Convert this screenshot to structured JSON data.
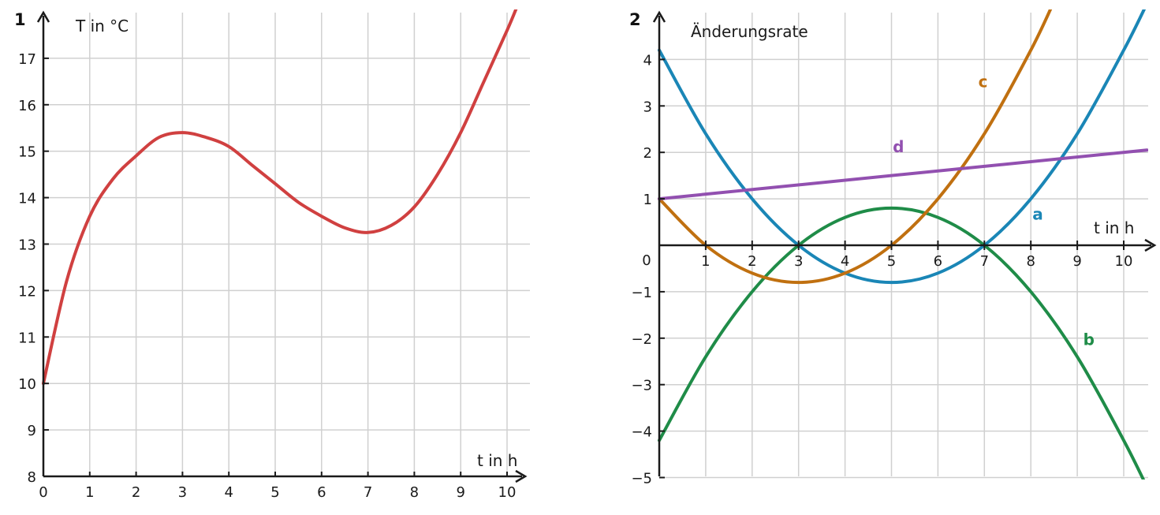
{
  "chart_data": [
    {
      "number": "1",
      "type": "line",
      "ylabel": "T in °C",
      "xlabel": "t in h",
      "xlim": [
        0,
        10.5
      ],
      "ylim": [
        8,
        17.8
      ],
      "x_ticks": [
        0,
        1,
        2,
        3,
        4,
        5,
        6,
        7,
        8,
        9,
        10
      ],
      "y_ticks": [
        8,
        9,
        10,
        11,
        12,
        13,
        14,
        15,
        16,
        17
      ],
      "grid": true,
      "series": [
        {
          "color": "#d04040",
          "x": [
            0,
            0.5,
            1,
            1.5,
            2,
            2.5,
            3,
            3.5,
            4,
            4.5,
            5,
            5.5,
            6,
            6.5,
            7,
            7.5,
            8,
            8.5,
            9,
            9.5,
            10,
            10.25
          ],
          "y": [
            10.0,
            12.2,
            13.6,
            14.4,
            14.9,
            15.3,
            15.4,
            15.3,
            15.1,
            14.7,
            14.3,
            13.9,
            13.6,
            13.35,
            13.25,
            13.4,
            13.8,
            14.5,
            15.4,
            16.5,
            17.6,
            18.2
          ]
        }
      ]
    },
    {
      "number": "2",
      "type": "line",
      "ylabel": "Änderungsrate",
      "xlabel": "t in h",
      "origin_label": "0",
      "xlim": [
        0,
        10.5
      ],
      "ylim": [
        -5,
        4.3
      ],
      "x_ticks": [
        1,
        2,
        3,
        4,
        5,
        6,
        7,
        8,
        9,
        10
      ],
      "y_ticks": [
        4,
        3,
        2,
        1,
        -1,
        -2,
        -3,
        -4,
        -5
      ],
      "y_tick_labels": [
        "4",
        "3",
        "2",
        "1",
        "−1",
        "−2",
        "−3",
        "−4",
        "−5"
      ],
      "grid": true,
      "series": [
        {
          "name": "a",
          "color": "#1a86b6",
          "x": [
            0,
            1,
            2,
            3,
            4,
            5,
            6,
            7,
            8,
            9,
            10,
            10.5
          ],
          "y": [
            4.2,
            2.4,
            1.0,
            0,
            -0.6,
            -0.8,
            -0.6,
            0,
            1.0,
            2.4,
            4.2,
            5.2
          ]
        },
        {
          "name": "b",
          "color": "#1f8c48",
          "x": [
            0,
            1,
            2,
            3,
            4,
            5,
            6,
            7,
            8,
            9,
            10,
            10.5
          ],
          "y": [
            -4.2,
            -2.4,
            -1.0,
            0,
            0.6,
            0.8,
            0.6,
            0,
            -1.0,
            -2.4,
            -4.2,
            -5.2
          ]
        },
        {
          "name": "c",
          "color": "#c07010",
          "x": [
            0,
            1,
            2,
            3,
            4,
            5,
            6,
            7,
            8,
            8.5
          ],
          "y": [
            1.0,
            0,
            -0.6,
            -0.8,
            -0.6,
            0,
            1.0,
            2.4,
            4.2,
            5.25
          ]
        },
        {
          "name": "d",
          "color": "#9250b0",
          "x": [
            0,
            10.5
          ],
          "y": [
            1.0,
            2.05
          ]
        }
      ],
      "series_labels": [
        {
          "name": "c",
          "x": 6.97,
          "y": 3.4
        },
        {
          "name": "d",
          "x": 5.15,
          "y": 2.0
        },
        {
          "name": "a",
          "x": 8.15,
          "y": 0.55
        },
        {
          "name": "b",
          "x": 9.25,
          "y": -2.15
        }
      ]
    }
  ]
}
